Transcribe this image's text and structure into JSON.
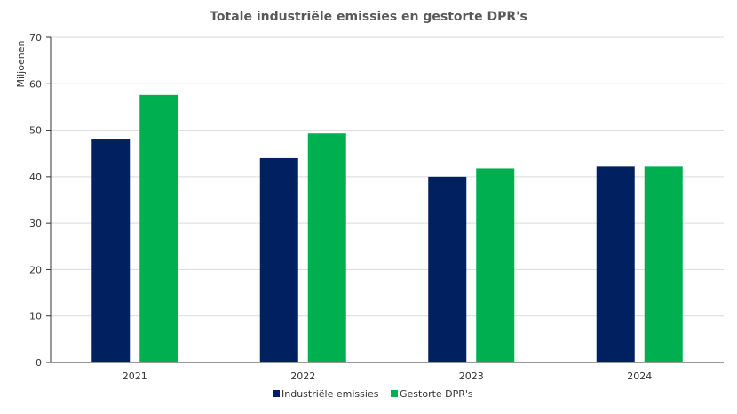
{
  "chart_data": {
    "type": "bar",
    "title": "Totale industriële emissies en gestorte DPR's",
    "xlabel": "",
    "ylabel": "Miljoenen",
    "categories": [
      "2021",
      "2022",
      "2023",
      "2024"
    ],
    "ylim": [
      0,
      70
    ],
    "yticks": [
      0,
      10,
      20,
      30,
      40,
      50,
      60,
      70
    ],
    "grid": true,
    "legend_position": "bottom",
    "series": [
      {
        "name": "Industriële emissies",
        "color": "#002060",
        "values": [
          48,
          44,
          40,
          42.2
        ]
      },
      {
        "name": "Gestorte DPR's",
        "color": "#00B050",
        "values": [
          57.6,
          49.3,
          41.8,
          42.2
        ]
      }
    ]
  }
}
